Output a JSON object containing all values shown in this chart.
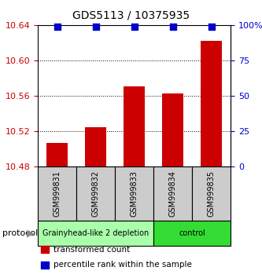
{
  "title": "GDS5113 / 10375935",
  "samples": [
    "GSM999831",
    "GSM999832",
    "GSM999833",
    "GSM999834",
    "GSM999835"
  ],
  "bar_values": [
    10.507,
    10.525,
    10.571,
    10.563,
    10.622
  ],
  "percentile_values": [
    99,
    99,
    99,
    99,
    99
  ],
  "ymin": 10.48,
  "ymax": 10.64,
  "yticks": [
    10.48,
    10.52,
    10.56,
    10.6,
    10.64
  ],
  "y2min": 0,
  "y2max": 100,
  "y2ticks": [
    0,
    25,
    50,
    75,
    100
  ],
  "y2tick_labels": [
    "0",
    "25",
    "50",
    "75",
    "100%"
  ],
  "bar_color": "#cc0000",
  "dot_color": "#0000cc",
  "bar_width": 0.55,
  "groups": [
    {
      "label": "Grainyhead-like 2 depletion",
      "samples": [
        0,
        1,
        2
      ],
      "color": "#aaffaa"
    },
    {
      "label": "control",
      "samples": [
        3,
        4
      ],
      "color": "#33dd33"
    }
  ],
  "protocol_label": "protocol",
  "background_color": "#ffffff",
  "plot_bg_color": "#ffffff",
  "grid_color": "#000000",
  "tick_label_color_left": "#cc0000",
  "tick_label_color_right": "#0000cc",
  "legend_items": [
    {
      "label": "transformed count",
      "color": "#cc0000"
    },
    {
      "label": "percentile rank within the sample",
      "color": "#0000cc"
    }
  ],
  "title_fontsize": 10,
  "tick_fontsize": 8,
  "sample_fontsize": 7,
  "group_fontsize": 7,
  "percentile_dot_size": 40
}
